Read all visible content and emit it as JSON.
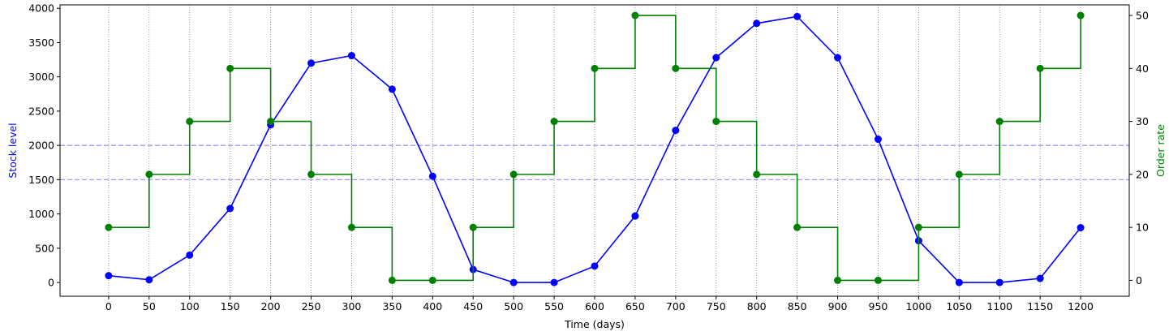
{
  "chart_data": {
    "type": "line",
    "xlabel": "Time (days)",
    "ylabel_left": "Stock level",
    "ylabel_right": "Order rate",
    "xlim": [
      -60,
      1260
    ],
    "ylim_left": [
      -200,
      4050
    ],
    "ylim_right": [
      -3,
      52
    ],
    "xticks": [
      0,
      50,
      100,
      150,
      200,
      250,
      300,
      350,
      400,
      450,
      500,
      550,
      600,
      650,
      700,
      750,
      800,
      850,
      900,
      950,
      1000,
      1050,
      1100,
      1150,
      1200
    ],
    "yticks_left": [
      0,
      500,
      1000,
      1500,
      2000,
      2500,
      3000,
      3500,
      4000
    ],
    "yticks_right": [
      0,
      10,
      20,
      30,
      40,
      50
    ],
    "vertical_gridlines": true,
    "hlines": [
      {
        "y": 2000,
        "axis": "left",
        "style": "dashed",
        "color": "#9999ff"
      },
      {
        "y": 1500,
        "axis": "left",
        "style": "dashed",
        "color": "#9999ff"
      }
    ],
    "series": [
      {
        "axis": "left",
        "style": "line-markers",
        "color": "#0000ff",
        "x": [
          0,
          50,
          100,
          150,
          200,
          250,
          300,
          350,
          400,
          450,
          500,
          550,
          600,
          650,
          700,
          750,
          800,
          850,
          900,
          950,
          1000,
          1050,
          1100,
          1150,
          1200
        ],
        "values": [
          100,
          40,
          400,
          1080,
          2300,
          3200,
          3310,
          2820,
          1550,
          190,
          0,
          0,
          240,
          970,
          2220,
          3280,
          3780,
          3880,
          3280,
          2090,
          610,
          0,
          0,
          60,
          800
        ]
      },
      {
        "axis": "right",
        "style": "step-post-markers",
        "color": "#008000",
        "x": [
          0,
          50,
          100,
          150,
          200,
          250,
          300,
          350,
          400,
          450,
          500,
          550,
          600,
          650,
          700,
          750,
          800,
          850,
          900,
          950,
          1000,
          1050,
          1100,
          1150,
          1200
        ],
        "values": [
          10,
          20,
          30,
          40,
          30,
          20,
          10,
          0,
          0,
          10,
          20,
          30,
          40,
          50,
          40,
          30,
          20,
          10,
          0,
          0,
          10,
          20,
          30,
          40,
          50
        ]
      }
    ]
  }
}
